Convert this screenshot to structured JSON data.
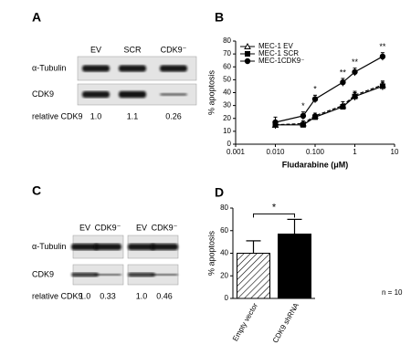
{
  "blots": [
    {
      "label": "A",
      "lanes": [
        "EV",
        "SCR",
        "CDK9⁻"
      ],
      "rows": [
        "α-Tubulin",
        "CDK9"
      ],
      "relative_label": "relative CDK9",
      "relative": [
        "1.0",
        "1.1",
        "0.26"
      ]
    },
    {
      "label": "C",
      "lanes": [
        "EV",
        "CDK9⁻",
        "EV",
        "CDK9⁻"
      ],
      "rows": [
        "α-Tubulin",
        "CDK9"
      ],
      "relative_label": "relative CDK9",
      "relative": [
        "1.0",
        "0.33",
        "1.0",
        "0.46"
      ]
    }
  ],
  "chart_data": [
    {
      "type": "line",
      "label": "B",
      "log_x": true,
      "xlabel": "Fludarabine (μM)",
      "ylabel": "% apoptosis",
      "xlim": [
        0.001,
        10
      ],
      "xticks": [
        0.001,
        {
          "value": 0.01,
          "label": "0.010"
        },
        {
          "value": 0.1,
          "label": "0.100"
        },
        1,
        10
      ],
      "ylim": [
        0,
        80
      ],
      "yticks": [
        0,
        10,
        20,
        30,
        40,
        50,
        60,
        70,
        80
      ],
      "x": [
        0.01,
        0.05,
        0.1,
        0.5,
        1,
        5
      ],
      "series": [
        {
          "name": "MEC-1 EV",
          "color": "#000000",
          "marker": "triangle",
          "values": [
            15,
            16,
            22,
            30,
            38,
            46
          ],
          "errors": [
            3,
            2,
            2,
            3,
            3,
            3
          ]
        },
        {
          "name": "MEC-1 SCR",
          "color": "#000000",
          "marker": "square",
          "values": [
            15,
            15,
            21,
            29,
            37,
            45
          ],
          "errors": [
            2,
            2,
            2,
            2,
            3,
            3
          ]
        },
        {
          "name": "MEC-1CDK9⁻",
          "color": "#000000",
          "marker": "circle",
          "values": [
            17,
            22,
            35,
            48,
            56,
            68
          ],
          "errors": [
            4,
            3,
            3,
            3,
            3,
            3
          ]
        }
      ],
      "annotations": [
        {
          "x": 0.05,
          "text": "*"
        },
        {
          "x": 0.1,
          "text": "*"
        },
        {
          "x": 0.5,
          "text": "**"
        },
        {
          "x": 1,
          "text": "**"
        },
        {
          "x": 5,
          "text": "**"
        }
      ]
    },
    {
      "type": "bar",
      "label": "D",
      "ylabel": "% apoptosis",
      "categories": [
        "Empty vector",
        "CDK9 shRNA"
      ],
      "values": [
        40,
        57
      ],
      "errors": [
        11,
        13
      ],
      "fills": [
        "hatch",
        "solid"
      ],
      "color": "#000000",
      "ylim": [
        0,
        80
      ],
      "yticks": [
        0,
        20,
        40,
        60,
        80
      ],
      "significance": "*",
      "note": "n = 10"
    }
  ]
}
